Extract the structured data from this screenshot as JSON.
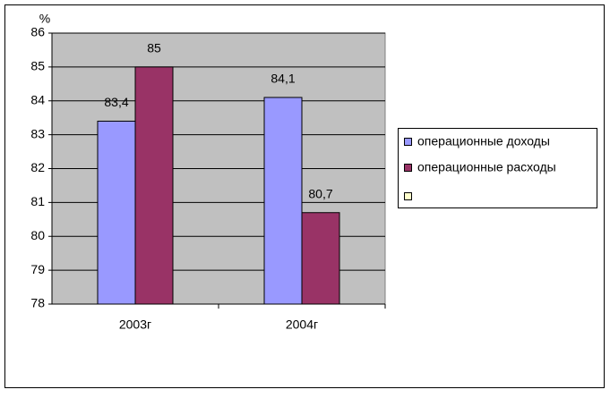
{
  "chart_data": {
    "type": "bar",
    "y_label": "%",
    "categories": [
      "2003г",
      "2004г"
    ],
    "series": [
      {
        "name": "операционные доходы",
        "color": "#9999ff",
        "values": [
          83.4,
          84.1
        ],
        "value_labels": [
          "83,4",
          "84,1"
        ]
      },
      {
        "name": "операционные расходы",
        "color": "#993366",
        "values": [
          85,
          80.7
        ],
        "value_labels": [
          "85",
          "80,7"
        ]
      }
    ],
    "ylim": [
      78,
      86
    ],
    "yticks": [
      78,
      79,
      80,
      81,
      82,
      83,
      84,
      85,
      86
    ],
    "grid": true,
    "plot_background": "#c0c0c0",
    "legend": "right"
  }
}
